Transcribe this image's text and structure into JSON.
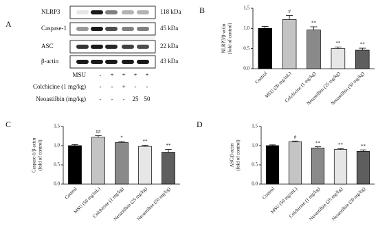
{
  "blot": {
    "panel": "A",
    "proteins": [
      {
        "name": "NLRP3",
        "size": "118 kDa"
      },
      {
        "name": "Caspase-1",
        "size": "45 kDa"
      },
      {
        "name": "ASC",
        "size": "22 kDa"
      },
      {
        "name": "β-actin",
        "size": "43 kDa"
      }
    ],
    "treatments": [
      {
        "name": "MSU",
        "levels": [
          "-",
          "+",
          "+",
          "+",
          "+"
        ]
      },
      {
        "name": "Colchicine (1 mg/kg)",
        "levels": [
          "-",
          "-",
          "+",
          "-",
          "-"
        ]
      },
      {
        "name": "Neoastilbin (mg/kg)",
        "levels": [
          "-",
          "-",
          "-",
          "25",
          "50"
        ]
      }
    ]
  },
  "chart_data": [
    {
      "type": "bar",
      "panel": "B",
      "y_label": [
        "NLRP3/β-actin",
        "(fold of control)"
      ],
      "categories": [
        "Control",
        "MSU (50 mg/mL)",
        "Colchicine (1 mg/kg)",
        "Neoastilbin (25 mg/kg)",
        "Neoastilbin (50 mg/kg)"
      ],
      "values": [
        1.0,
        1.22,
        0.96,
        0.5,
        0.46
      ],
      "errors": [
        0.05,
        0.1,
        0.08,
        0.04,
        0.05
      ],
      "colors": [
        "#000000",
        "#c4c4c4",
        "#8a8a8a",
        "#e6e6e6",
        "#5e5e5e"
      ],
      "annotations": [
        null,
        "#",
        "**",
        "**",
        "**"
      ],
      "ylim": [
        0,
        1.5
      ],
      "yticks": [
        {
          "value": 0,
          "label": "0.0"
        },
        {
          "value": 0.5,
          "label": "0.5"
        },
        {
          "value": 1,
          "label": "1.0"
        },
        {
          "value": 1.5,
          "label": "1.5"
        }
      ]
    },
    {
      "type": "bar",
      "panel": "C",
      "y_label": [
        "Caspase-1/β-actin",
        "(fold of control)"
      ],
      "categories": [
        "Control",
        "MSU (50 mg/mL)",
        "Colchicine (1 mg/kg)",
        "Neoastilbin (25 mg/kg)",
        "Neoastilbin (50 mg/kg)"
      ],
      "values": [
        1.0,
        1.22,
        1.08,
        0.98,
        0.83
      ],
      "errors": [
        0.03,
        0.04,
        0.03,
        0.03,
        0.07
      ],
      "colors": [
        "#000000",
        "#c4c4c4",
        "#8a8a8a",
        "#e6e6e6",
        "#5e5e5e"
      ],
      "annotations": [
        null,
        "##",
        "*",
        "**",
        "**"
      ],
      "ylim": [
        0,
        1.5
      ],
      "yticks": [
        {
          "value": 0,
          "label": "0.0"
        },
        {
          "value": 0.5,
          "label": "0.5"
        },
        {
          "value": 1,
          "label": "1.0"
        },
        {
          "value": 1.5,
          "label": "1.5"
        }
      ]
    },
    {
      "type": "bar",
      "panel": "D",
      "y_label": [
        "ASC/β-actin",
        "(fold of control)"
      ],
      "categories": [
        "Control",
        "MSU (50 mg/mL)",
        "Colchicine (1 mg/kg)",
        "Neoastilbin (25 mg/kg)",
        "Neoastilbin (50 mg/kg)"
      ],
      "values": [
        1.0,
        1.1,
        0.94,
        0.9,
        0.85
      ],
      "errors": [
        0.02,
        0.02,
        0.03,
        0.02,
        0.04
      ],
      "colors": [
        "#000000",
        "#c4c4c4",
        "#8a8a8a",
        "#e6e6e6",
        "#5e5e5e"
      ],
      "annotations": [
        null,
        "#",
        "**",
        "**",
        "**"
      ],
      "ylim": [
        0,
        1.5
      ],
      "yticks": [
        {
          "value": 0,
          "label": "0.0"
        },
        {
          "value": 0.5,
          "label": "0.5"
        },
        {
          "value": 1,
          "label": "1.0"
        },
        {
          "value": 1.5,
          "label": "1.5"
        }
      ]
    }
  ]
}
